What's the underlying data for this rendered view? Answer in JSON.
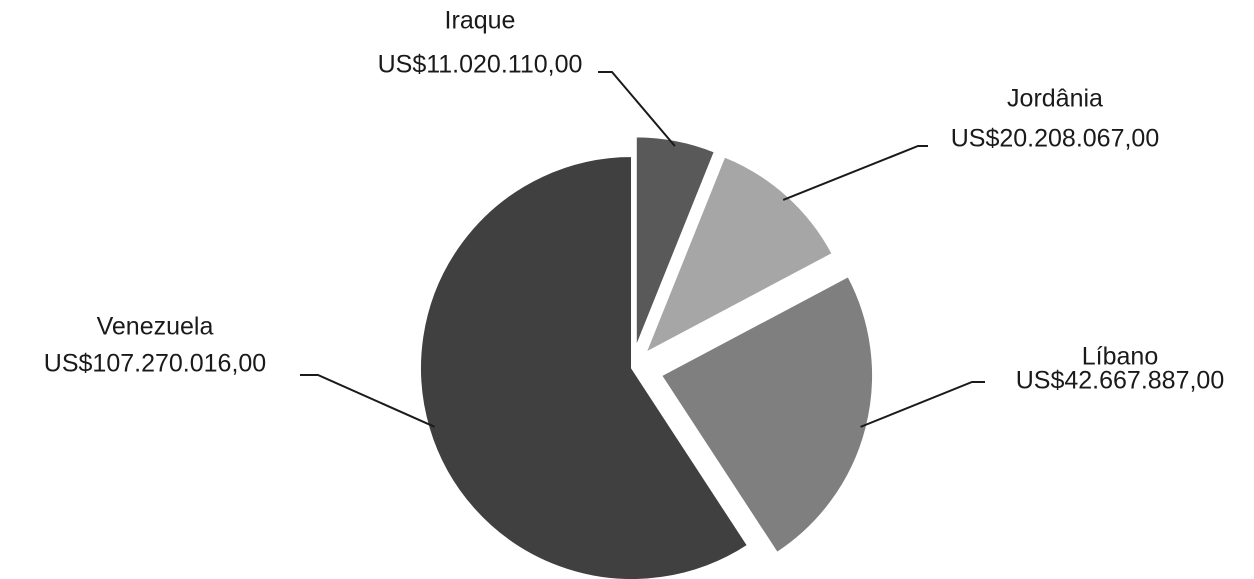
{
  "chart_data": {
    "type": "pie",
    "categories": [
      "Iraque",
      "Jordânia",
      "Líbano",
      "Venezuela"
    ],
    "values": [
      11020110,
      20208067,
      42667887,
      107270016
    ],
    "value_labels": [
      "US$11.020.110,00",
      "US$20.208.067,00",
      "US$42.667.887,00",
      "US$107.270.016,00"
    ],
    "colors": [
      "#595959",
      "#a6a6a6",
      "#7f7f7f",
      "#404040"
    ]
  }
}
